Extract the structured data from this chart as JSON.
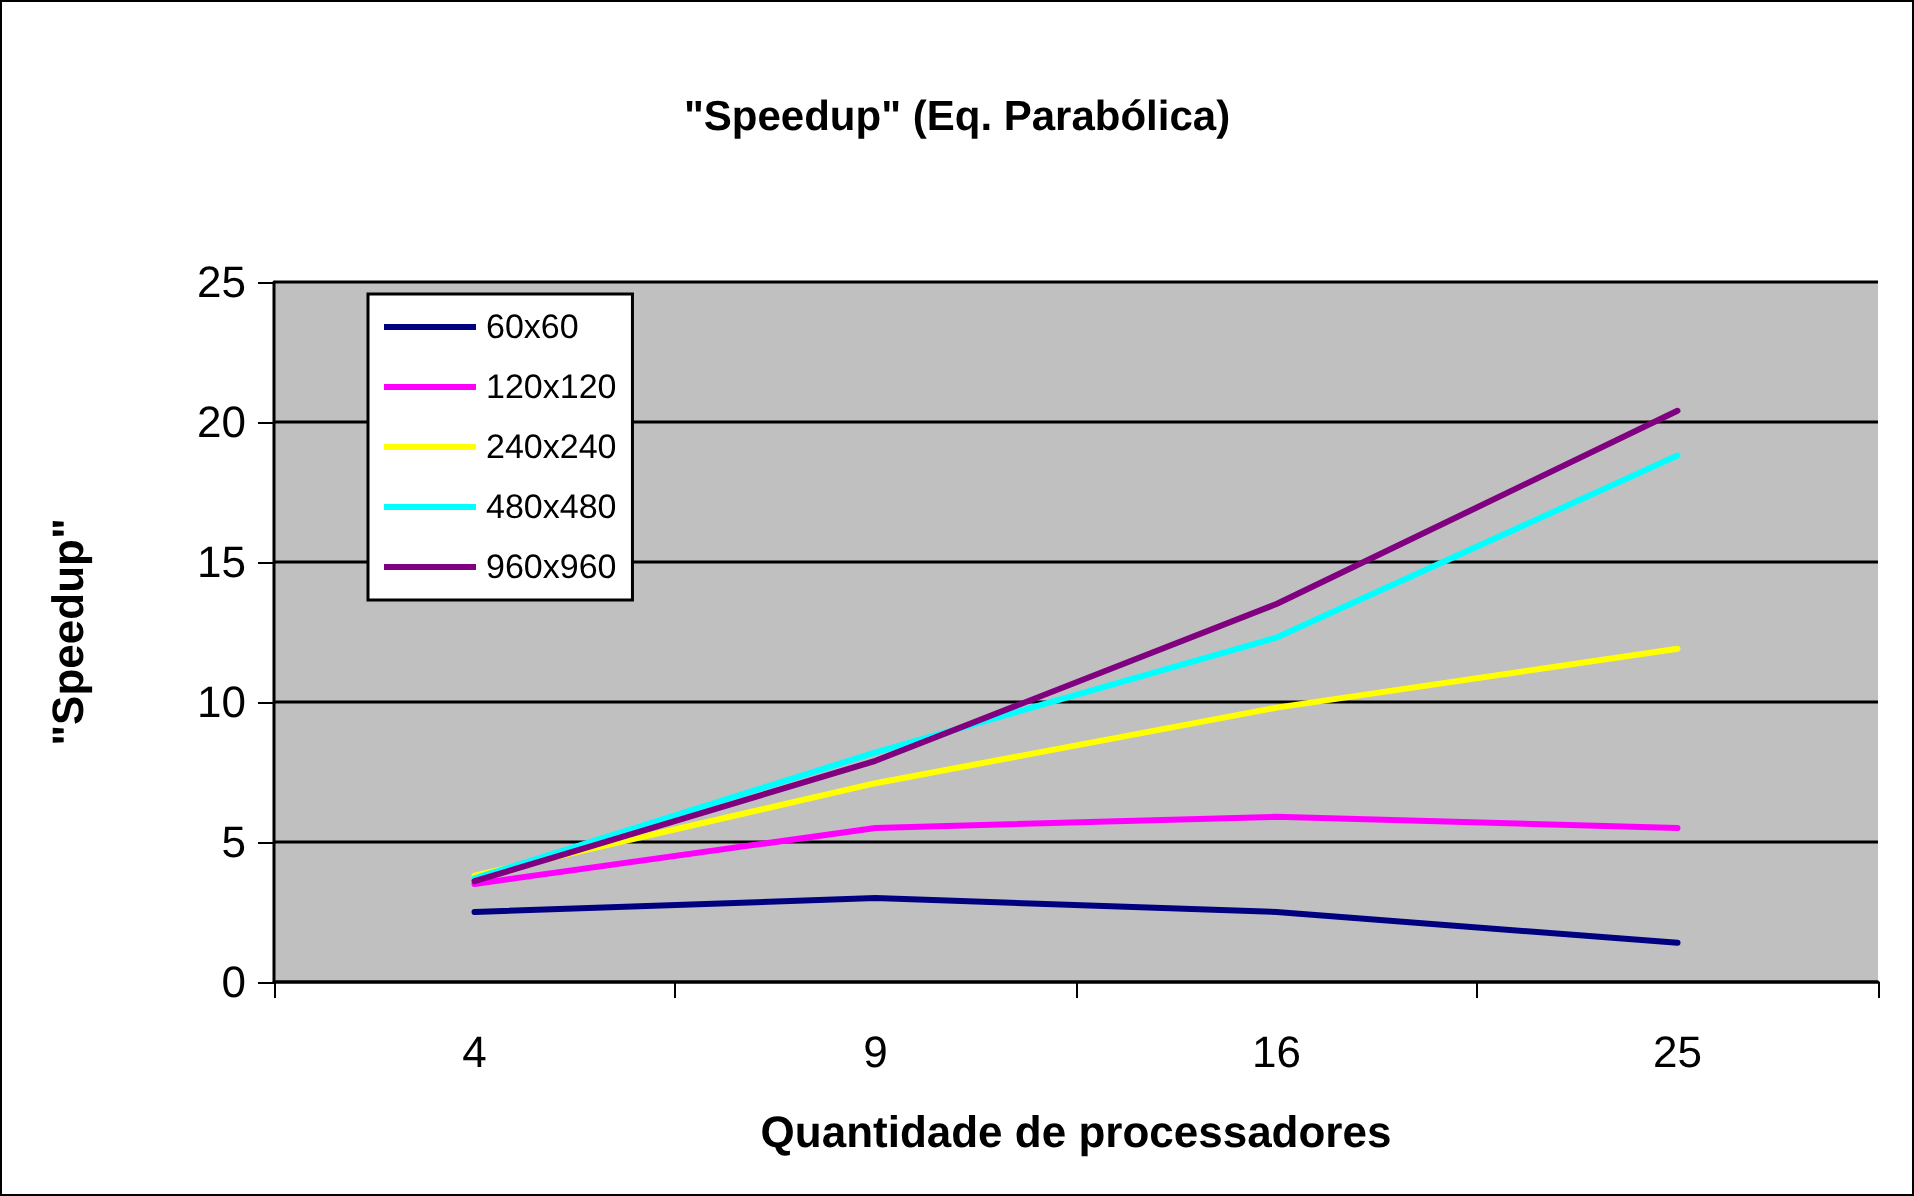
{
  "chart_data": {
    "type": "line",
    "title": "\"Speedup\" (Eq. Parabólica)",
    "xlabel": "Quantidade de processadores",
    "ylabel": "\"Speedup\"",
    "categories": [
      "4",
      "9",
      "16",
      "25"
    ],
    "ylim": [
      0,
      25
    ],
    "yticks": [
      0,
      5,
      10,
      15,
      20,
      25
    ],
    "grid": "y",
    "legend": "top left",
    "marker": "none",
    "line_style": "solid",
    "series": [
      {
        "name": "60x60",
        "color": "#000080",
        "values": [
          2.5,
          3.0,
          2.5,
          1.4
        ]
      },
      {
        "name": "120x120",
        "color": "#ff00ff",
        "values": [
          3.5,
          5.5,
          5.9,
          5.5
        ]
      },
      {
        "name": "240x240",
        "color": "#ffff00",
        "values": [
          3.8,
          7.1,
          9.8,
          11.9
        ]
      },
      {
        "name": "480x480",
        "color": "#00ffff",
        "values": [
          3.7,
          8.2,
          12.3,
          18.8
        ]
      },
      {
        "name": "960x960",
        "color": "#800080",
        "values": [
          3.6,
          7.9,
          13.5,
          20.4
        ]
      }
    ]
  }
}
